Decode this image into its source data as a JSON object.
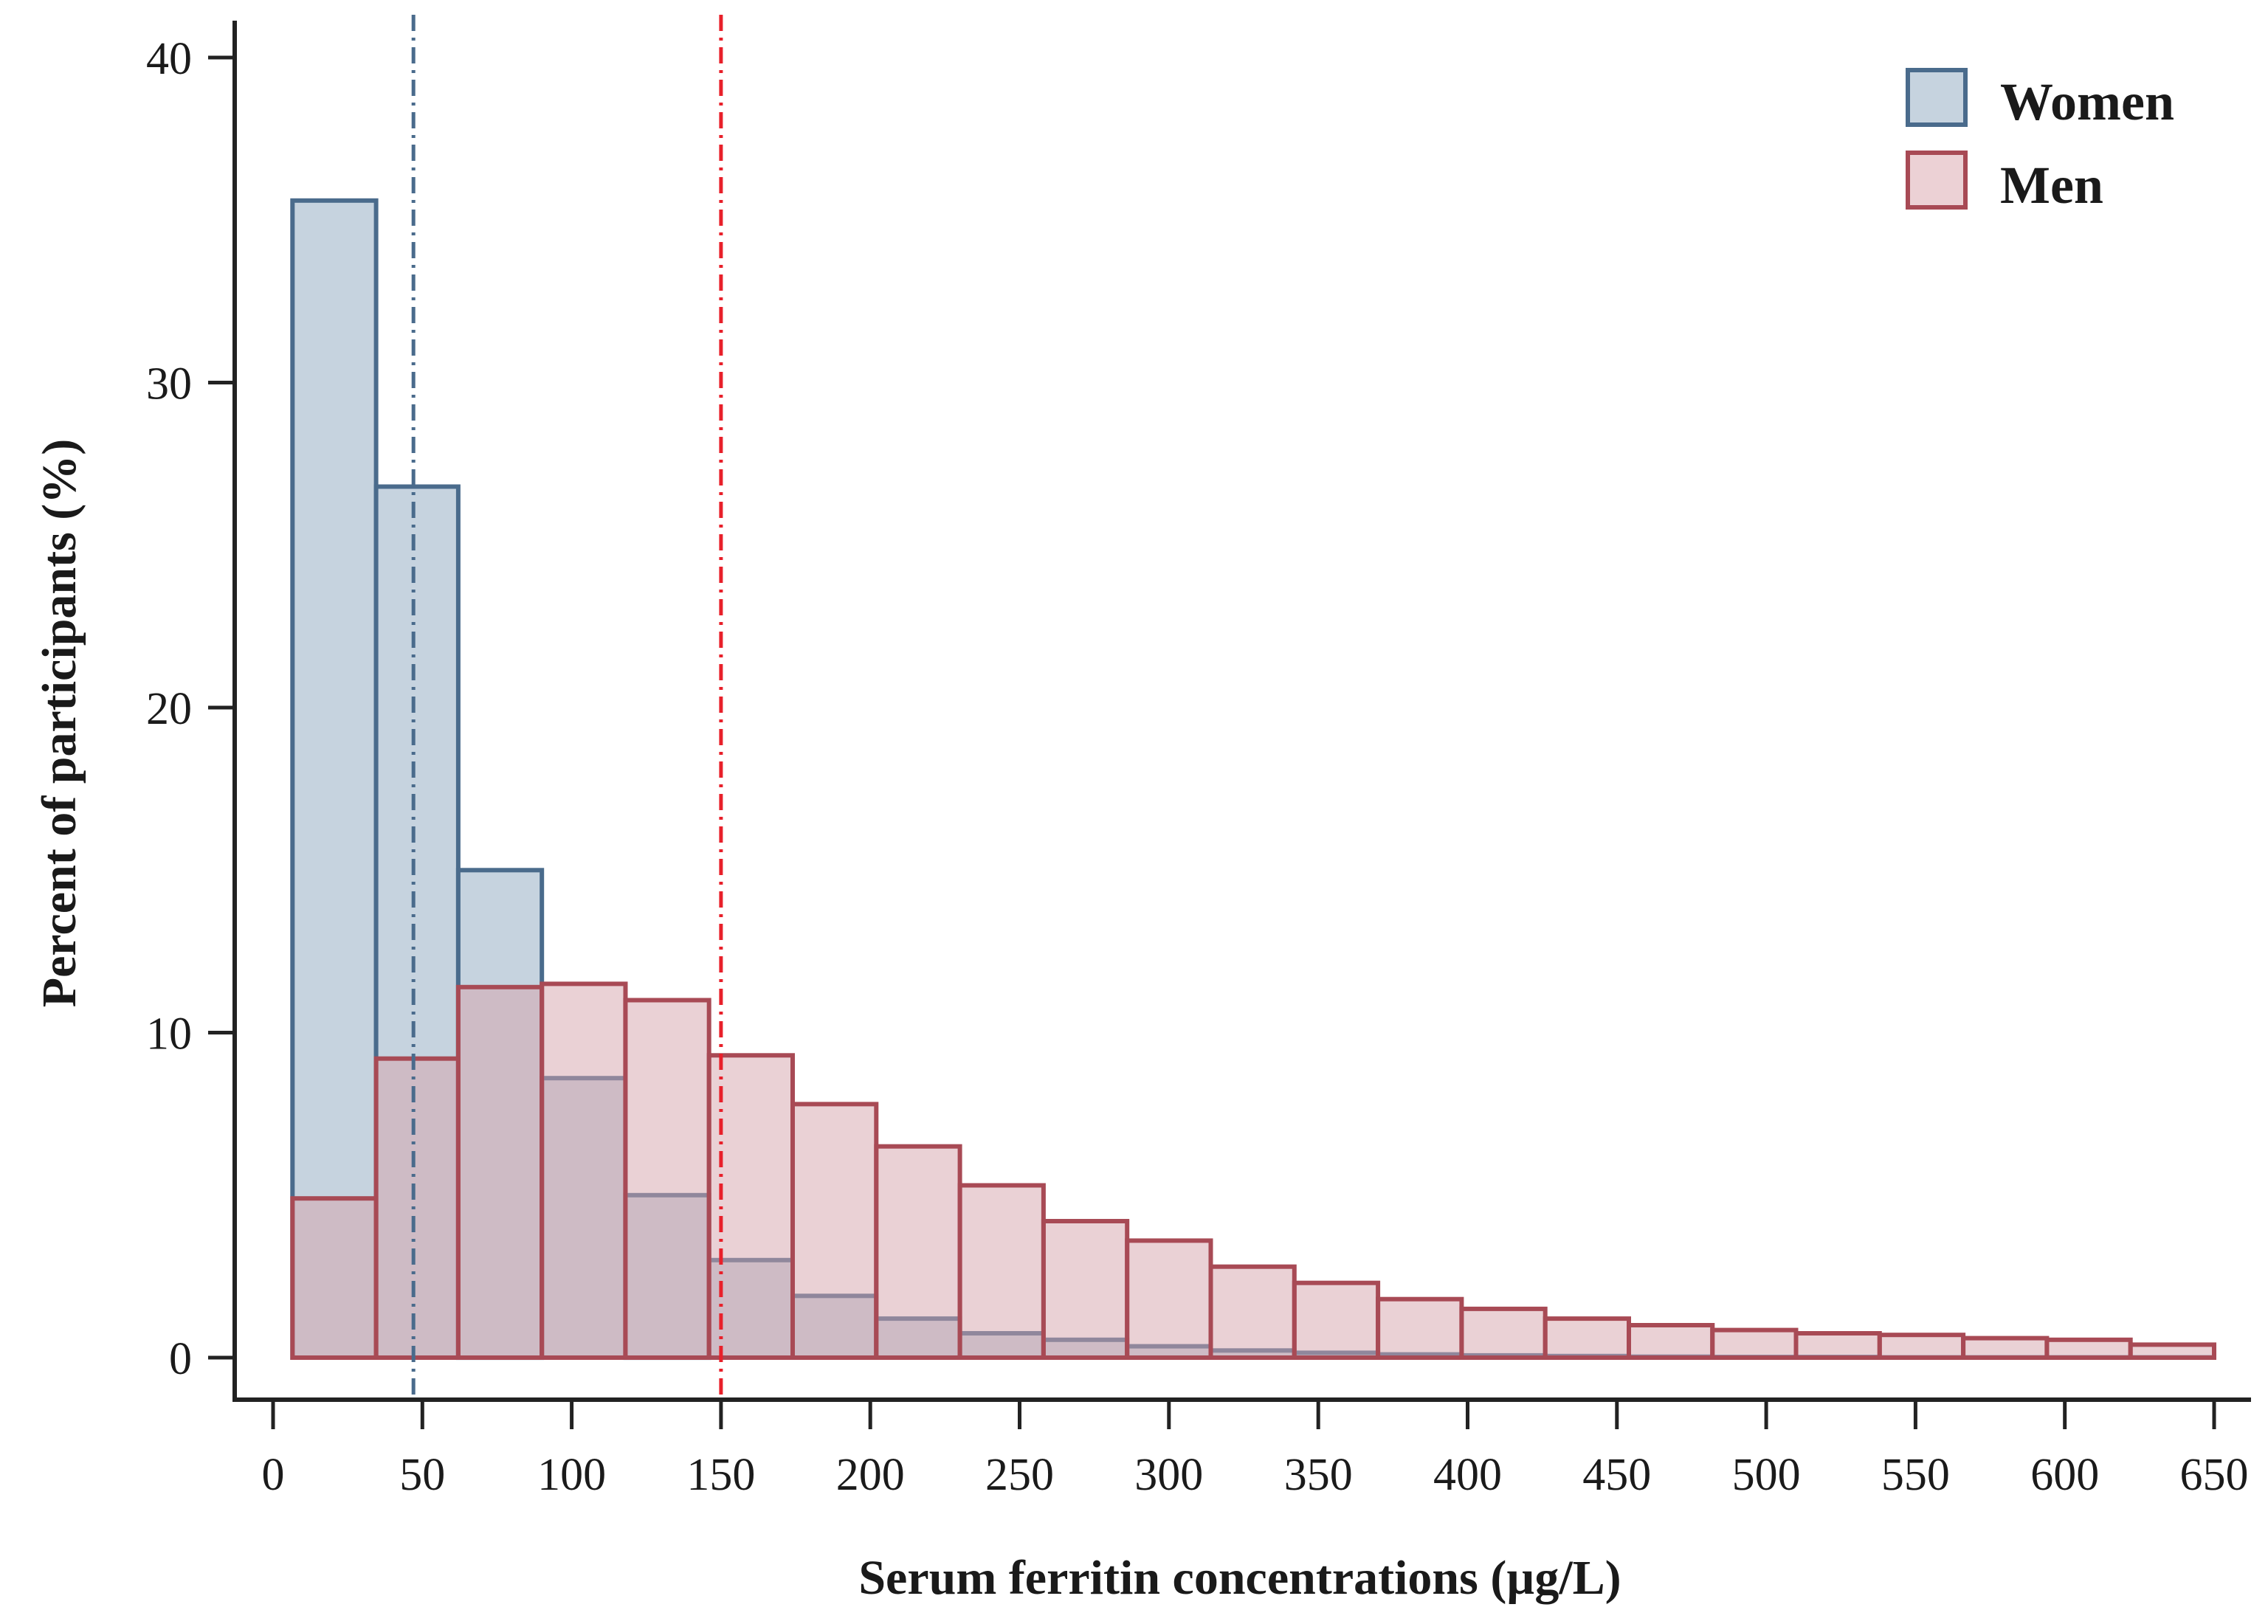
{
  "chart_data": {
    "type": "histogram",
    "title": "",
    "xlabel": "Serum ferritin concentrations (µg/L)",
    "ylabel": "Percent of participants (%)",
    "xlim": [
      -5,
      655
    ],
    "ylim": [
      -1.2,
      41
    ],
    "x_ticks": [
      0,
      50,
      100,
      150,
      200,
      250,
      300,
      350,
      400,
      450,
      500,
      550,
      600,
      650
    ],
    "y_ticks": [
      0,
      10,
      20,
      30,
      40
    ],
    "bin_edges": [
      6.5,
      34.5,
      62,
      90,
      118,
      146,
      174,
      202,
      230,
      258,
      286,
      314,
      342,
      370,
      398,
      426,
      454,
      482,
      510,
      538,
      566,
      594,
      622,
      650
    ],
    "legend_position": "top-right",
    "series": [
      {
        "name": "Women",
        "fill": "#c6d3df",
        "stroke": "#4a6b8c",
        "values": [
          35.6,
          26.8,
          15.0,
          8.6,
          5.0,
          3.0,
          1.9,
          1.2,
          0.75,
          0.55,
          0.35,
          0.22,
          0.15,
          0.1,
          0.07,
          0.05,
          0.03,
          0.02,
          0.02,
          0.01,
          0.01,
          0.01,
          0.01
        ]
      },
      {
        "name": "Men",
        "fill": "rgba(214,163,171,0.5)",
        "stroke": "#a84a55",
        "values": [
          4.9,
          9.2,
          11.4,
          11.5,
          11.0,
          9.3,
          7.8,
          6.5,
          5.3,
          4.2,
          3.6,
          2.8,
          2.3,
          1.8,
          1.5,
          1.2,
          1.0,
          0.85,
          0.75,
          0.7,
          0.6,
          0.55,
          0.4
        ]
      }
    ],
    "reference_lines": [
      {
        "x": 47,
        "color": "#4a6b8c",
        "style": "dash-dot"
      },
      {
        "x": 150,
        "color": "#e8202a",
        "style": "dash-dot"
      }
    ]
  }
}
